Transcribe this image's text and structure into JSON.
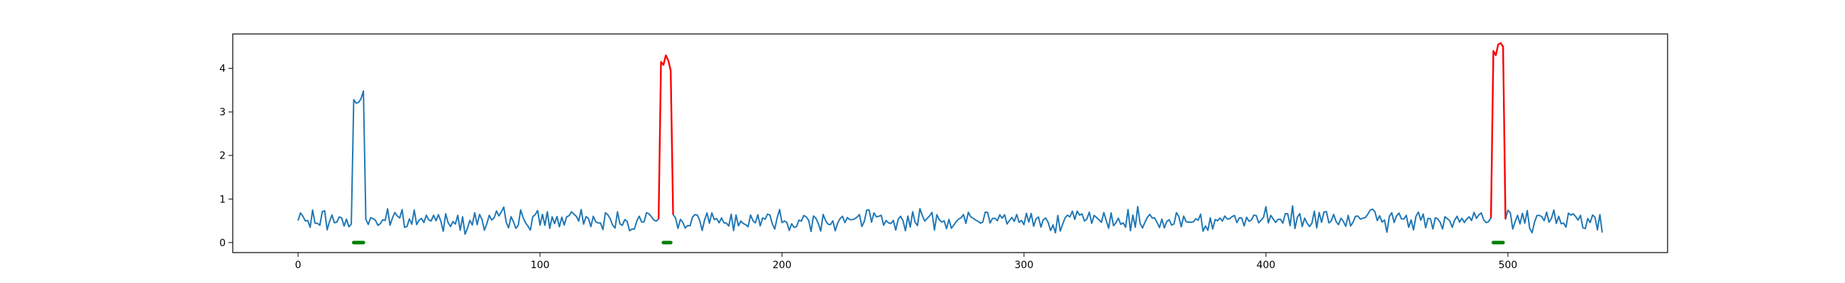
{
  "chart_data": {
    "type": "line",
    "title": "",
    "xlabel": "",
    "ylabel": "",
    "xlim": [
      -27,
      566
    ],
    "ylim": [
      -0.23,
      4.79
    ],
    "xticks": [
      0,
      100,
      200,
      300,
      400,
      500
    ],
    "yticks": [
      0,
      1,
      2,
      3,
      4
    ],
    "grid": false,
    "legend": "none",
    "n_points": 540,
    "baseline": {
      "color": "#1f77b4",
      "mean": 0.52,
      "amplitude": 0.35,
      "min": 0.08,
      "max": 1.02
    },
    "anomalies": [
      {
        "x_start": 23,
        "x_end": 27,
        "values": [
          3.28,
          3.2,
          3.22,
          3.3,
          3.48
        ],
        "color": "#1f77b4",
        "detected": false
      },
      {
        "x_start": 150,
        "x_end": 154,
        "values": [
          4.15,
          4.08,
          4.3,
          4.18,
          3.95
        ],
        "color": "#ff0000",
        "detected": true
      },
      {
        "x_start": 494,
        "x_end": 498,
        "values": [
          4.4,
          4.3,
          4.55,
          4.58,
          4.5
        ],
        "color": "#ff0000",
        "detected": true
      }
    ],
    "markers": [
      {
        "x_start": 23,
        "x_end": 27,
        "y": 0.0,
        "color": "#008000"
      },
      {
        "x_start": 151,
        "x_end": 154,
        "y": 0.0,
        "color": "#008000"
      },
      {
        "x_start": 494,
        "x_end": 498,
        "y": 0.0,
        "color": "#008000"
      }
    ]
  },
  "colors": {
    "series": "#1f77b4",
    "detected": "#ff0000",
    "marker": "#008000",
    "axes": "#000000"
  }
}
